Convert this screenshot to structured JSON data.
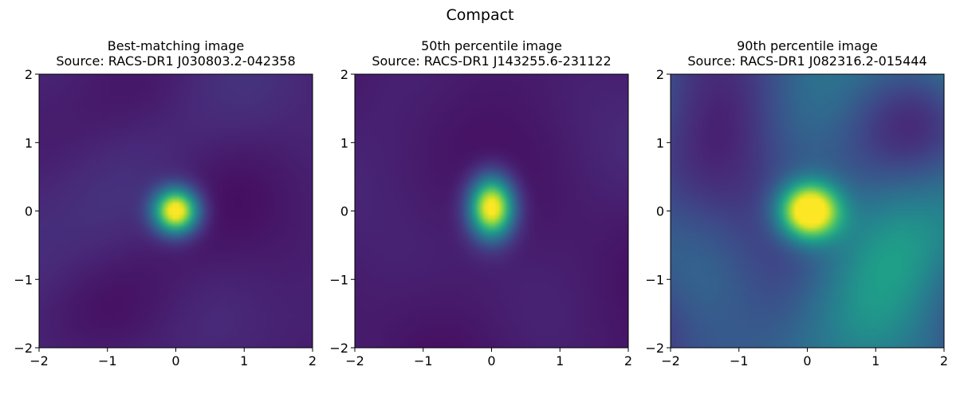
{
  "figure": {
    "suptitle": "Compact"
  },
  "chart_data": [
    {
      "type": "heatmap",
      "title_line1": "Best-matching image",
      "title_line2": "Source: RACS-DR1 J030803.2-042358",
      "xlim": [
        -2,
        2
      ],
      "ylim": [
        -2,
        2
      ],
      "xticks": [
        "−2",
        "−1",
        "0",
        "1",
        "2"
      ],
      "yticks": [
        "−2",
        "−1",
        "0",
        "1",
        "2"
      ],
      "colormap": "viridis",
      "peak": {
        "x": 0.0,
        "y": 0.0,
        "sigma_x": 0.22,
        "sigma_y": 0.22
      },
      "background_level": 0.1,
      "noise_level": 0.07,
      "seed": 11
    },
    {
      "type": "heatmap",
      "title_line1": "50th percentile image",
      "title_line2": "Source: RACS-DR1 J143255.6-231122",
      "xlim": [
        -2,
        2
      ],
      "ylim": [
        -2,
        2
      ],
      "xticks": [
        "−2",
        "−1",
        "0",
        "1",
        "2"
      ],
      "yticks": [
        "−2",
        "−1",
        "0",
        "1",
        "2"
      ],
      "colormap": "viridis",
      "peak": {
        "x": 0.0,
        "y": 0.05,
        "sigma_x": 0.22,
        "sigma_y": 0.3
      },
      "background_level": 0.07,
      "noise_level": 0.05,
      "seed": 23
    },
    {
      "type": "heatmap",
      "title_line1": "90th percentile image",
      "title_line2": "Source: RACS-DR1 J082316.2-015444",
      "xlim": [
        -2,
        2
      ],
      "ylim": [
        -2,
        2
      ],
      "xticks": [
        "−2",
        "−1",
        "0",
        "1",
        "2"
      ],
      "yticks": [
        "−2",
        "−1",
        "0",
        "1",
        "2"
      ],
      "colormap": "viridis",
      "peak": {
        "x": 0.03,
        "y": 0.0,
        "sigma_x": 0.3,
        "sigma_y": 0.28
      },
      "background_level": 0.28,
      "noise_level": 0.26,
      "seed": 37
    }
  ]
}
